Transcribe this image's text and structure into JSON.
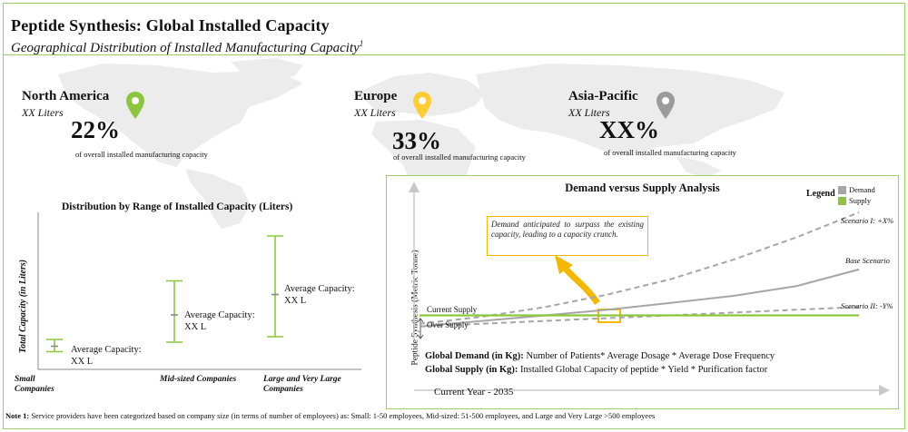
{
  "header": {
    "title": "Peptide Synthesis:  Global Installed  Capacity",
    "subtitle": "Geographical Distribution of Installed Manufacturing Capacity",
    "subtitle_sup": "1"
  },
  "colors": {
    "accent_green": "#8cc63f",
    "pin_yellow": "#ffcc33",
    "pin_gray": "#9b9b9b",
    "demand_gray": "#a6a6a6",
    "supply_green": "#8cc63f",
    "annotation_border": "#f5b800",
    "arrow_orange": "#f5b800"
  },
  "regions": [
    {
      "name": "North America",
      "volume": "XX Liters",
      "percent": "22%",
      "desc": "of overall installed manufacturing capacity",
      "pin_icon": "map-pin-icon",
      "pin_color": "#8cc63f"
    },
    {
      "name": "Europe",
      "volume": "XX Liters",
      "percent": "33%",
      "desc": "of overall installed manufacturing capacity",
      "pin_icon": "map-pin-icon",
      "pin_color": "#ffcc33"
    },
    {
      "name": "Asia-Pacific",
      "volume": "XX Liters",
      "percent": "XX%",
      "desc": "of overall installed manufacturing capacity",
      "pin_icon": "map-pin-icon",
      "pin_color": "#9b9b9b"
    }
  ],
  "left_chart": {
    "title": "Distribution by Range of Installed Capacity (Liters)",
    "ylabel": "Total Capacity (in Liters)",
    "categories": [
      {
        "label_line1": "Small",
        "label_line2": "Companies",
        "range_label_line1": "Average Capacity:",
        "range_label_line2": "XX L"
      },
      {
        "label_line1": "Mid-sized Companies",
        "label_line2": "",
        "range_label_line1": "Average Capacity:",
        "range_label_line2": "XX L"
      },
      {
        "label_line1": "Large and Very Large",
        "label_line2": "Companies",
        "range_label_line1": "Average Capacity:",
        "range_label_line2": "XX L"
      }
    ]
  },
  "right_chart": {
    "title": "Demand versus Supply Analysis",
    "legend_title": "Legend",
    "legend": [
      {
        "name": "Demand",
        "color": "#a6a6a6"
      },
      {
        "name": "Supply",
        "color": "#8cc63f"
      }
    ],
    "annotation": "Demand anticipated to surpass the existing capacity, leading to a capacity crunch.",
    "scenarios": [
      {
        "label": "Scenario I: +X%"
      },
      {
        "label": "Base Scenario"
      },
      {
        "label": "Scenario II: -Y%"
      }
    ],
    "current_supply_label": "Current Supply",
    "over_supply_label": "Over Supply",
    "ylabel": "Peptide Synthesis (Metric Tonne)",
    "formula_demand_head": "Global  Demand  (in Kg):",
    "formula_demand_body": " Number of Patients* Average Dosage * Average Dose Frequency",
    "formula_supply_head": "Global  Supply  (in Kg):",
    "formula_supply_body": " Installed Global Capacity of peptide * Yield  * Purification factor",
    "xlabel": "Current Year - 2035"
  },
  "chart_data": [
    {
      "type": "range",
      "title": "Distribution by Range of Installed Capacity (Liters)",
      "ylabel": "Total Capacity (in Liters)",
      "categories": [
        "Small Companies",
        "Mid-sized Companies",
        "Large and Very Large Companies"
      ],
      "ranges": [
        {
          "min": 0.03,
          "max": 0.12,
          "avg": 0.07
        },
        {
          "min": 0.1,
          "max": 0.55,
          "avg": 0.3
        },
        {
          "min": 0.14,
          "max": 0.88,
          "avg": 0.45
        }
      ],
      "value_labels": [
        "Average Capacity: XX L",
        "Average Capacity: XX L",
        "Average Capacity: XX L"
      ],
      "grid": false
    },
    {
      "type": "line",
      "title": "Demand versus Supply Analysis",
      "xlabel": "Current Year - 2035",
      "ylabel": "Peptide Synthesis (Metric Tonne)",
      "x": [
        0,
        1,
        2,
        3,
        4,
        5,
        6,
        7
      ],
      "series": [
        {
          "name": "Scenario I: +X%",
          "style": "dashed",
          "color": "#a6a6a6",
          "values": [
            0.1,
            0.15,
            0.22,
            0.31,
            0.42,
            0.56,
            0.72,
            0.9
          ]
        },
        {
          "name": "Base Scenario",
          "style": "solid",
          "color": "#a6a6a6",
          "values": [
            0.08,
            0.12,
            0.16,
            0.2,
            0.25,
            0.3,
            0.37,
            0.49
          ]
        },
        {
          "name": "Scenario II: -Y%",
          "style": "dashed",
          "color": "#a6a6a6",
          "values": [
            0.08,
            0.1,
            0.12,
            0.14,
            0.16,
            0.18,
            0.2,
            0.22
          ]
        },
        {
          "name": "Supply",
          "style": "solid",
          "color": "#8cc63f",
          "values": [
            0.16,
            0.16,
            0.16,
            0.16,
            0.16,
            0.16,
            0.16,
            0.16
          ]
        }
      ],
      "legend": "top-right",
      "grid": false
    }
  ],
  "footer": {
    "note_head": "Note 1:",
    "note_body": " Service providers have been categorized based on company size (in terms of number of employees) as: Small: 1-50 employees, Mid-sized: 51-500 employees, and Large and Very Large >500 employees"
  }
}
